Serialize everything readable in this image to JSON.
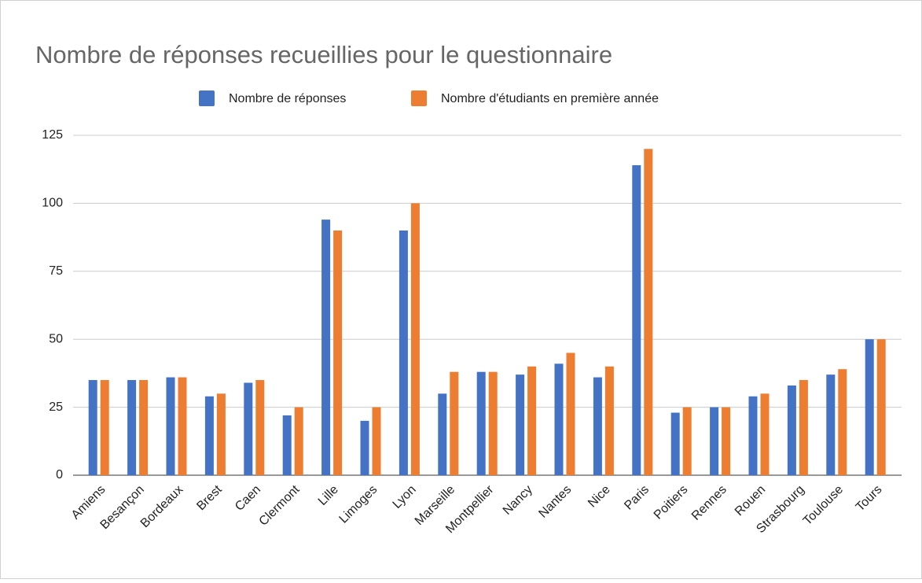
{
  "chart_data": {
    "type": "bar",
    "title": "Nombre de réponses recueillies pour le questionnaire",
    "categories": [
      "Amiens",
      "Besançon",
      "Bordeaux",
      "Brest",
      "Caen",
      "Clermont",
      "Lille",
      "Limoges",
      "Lyon",
      "Marseille",
      "Montpellier",
      "Nancy",
      "Nantes",
      "Nice",
      "Paris",
      "Poitiers",
      "Rennes",
      "Rouen",
      "Strasbourg",
      "Toulouse",
      "Tours"
    ],
    "series": [
      {
        "name": "Nombre de réponses",
        "color": "#4472c4",
        "values": [
          35,
          35,
          36,
          29,
          34,
          22,
          94,
          20,
          90,
          30,
          38,
          37,
          41,
          36,
          114,
          23,
          25,
          29,
          33,
          37,
          50
        ]
      },
      {
        "name": "Nombre d'étudiants en première année",
        "color": "#ed7d31",
        "values": [
          35,
          35,
          36,
          30,
          35,
          25,
          90,
          25,
          100,
          38,
          38,
          40,
          45,
          40,
          120,
          25,
          25,
          30,
          35,
          39,
          50
        ]
      }
    ],
    "ylim": [
      0,
      125
    ],
    "yticks": [
      0,
      25,
      50,
      75,
      100,
      125
    ],
    "grid": true,
    "legend": "top"
  }
}
